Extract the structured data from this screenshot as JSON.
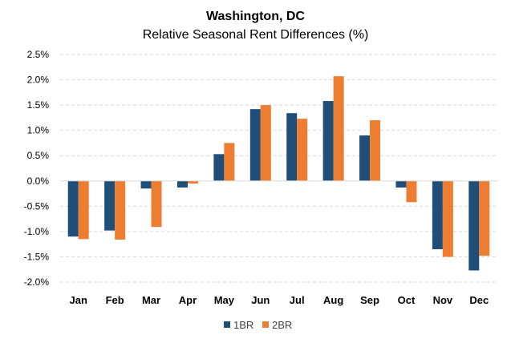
{
  "chart_data": {
    "type": "bar",
    "title": "Washington, DC",
    "subtitle": "Relative Seasonal Rent Differences (%)",
    "xlabel": "",
    "ylabel": "",
    "categories": [
      "Jan",
      "Feb",
      "Mar",
      "Apr",
      "May",
      "Jun",
      "Jul",
      "Aug",
      "Sep",
      "Oct",
      "Nov",
      "Dec"
    ],
    "series": [
      {
        "name": "1BR",
        "color": "#1f4e79",
        "values": [
          -1.1,
          -0.98,
          -0.15,
          -0.13,
          0.53,
          1.42,
          1.34,
          1.58,
          0.9,
          -0.13,
          -1.35,
          -1.77
        ]
      },
      {
        "name": "2BR",
        "color": "#ed7d31",
        "values": [
          -1.15,
          -1.16,
          -0.91,
          -0.05,
          0.75,
          1.5,
          1.23,
          2.07,
          1.2,
          -0.42,
          -1.5,
          -1.48
        ]
      }
    ],
    "ylim": [
      -2.0,
      2.5
    ],
    "yticks": [
      2.5,
      2.0,
      1.5,
      1.0,
      0.5,
      0.0,
      -0.5,
      -1.0,
      -1.5,
      -2.0
    ],
    "ytick_labels": [
      "2.5%",
      "2.0%",
      "1.5%",
      "1.0%",
      "0.5%",
      "0.0%",
      "-0.5%",
      "-1.0%",
      "-1.5%",
      "-2.0%"
    ],
    "grid": true,
    "legend_position": "bottom-center"
  }
}
